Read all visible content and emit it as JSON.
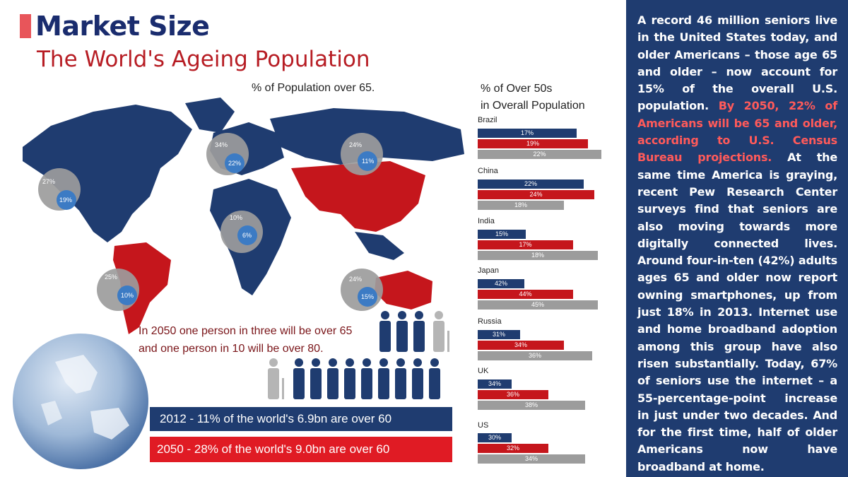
{
  "slide": {
    "title": "Market Size",
    "accent_color": "#e8555a",
    "title_color": "#1a2c6e"
  },
  "infographic": {
    "title": "The World's Ageing Population",
    "subtitle": "% of Population over 65.",
    "bar_heading": "% of Over 50s\nin Overall Population",
    "bubbles": [
      {
        "outer": "27%",
        "inner": "19%"
      },
      {
        "outer": "34%",
        "inner": "22%"
      },
      {
        "outer": "24%",
        "inner": "11%"
      },
      {
        "outer": "10%",
        "inner": "6%"
      },
      {
        "outer": "25%",
        "inner": "10%"
      },
      {
        "outer": "24%",
        "inner": "15%"
      }
    ],
    "countries": [
      {
        "name": "Brazil",
        "values": [
          "17%",
          "19%",
          "22%"
        ]
      },
      {
        "name": "China",
        "values": [
          "22%",
          "24%",
          "18%"
        ]
      },
      {
        "name": "India",
        "values": [
          "15%",
          "17%",
          "18%"
        ]
      },
      {
        "name": "Japan",
        "values": [
          "42%",
          "44%",
          "45%"
        ]
      },
      {
        "name": "Russia",
        "values": [
          "31%",
          "34%",
          "36%"
        ]
      },
      {
        "name": "UK",
        "values": [
          "34%",
          "36%",
          "38%"
        ]
      },
      {
        "name": "US",
        "values": [
          "30%",
          "32%",
          "34%"
        ]
      }
    ],
    "caption": "In 2050 one person in three will be over 65\nand one person in 10 will be over 80.",
    "stat_2012": "2012 - 11% of the world's 6.9bn are over 60",
    "stat_2050": "2050 - 28% of the world's 9.0bn are over 60"
  },
  "panel": {
    "text_1": "A record 46 million seniors live in the United States today, and older Americans – those age 65 and older – now account for 15% of the overall U.S. population.",
    "text_2": "By 2050, 22% of Americans will be 65 and older, according to U.S. Census Bureau projections.",
    "text_3": "At the same time America is graying, recent Pew Research Center surveys find that seniors are also moving towards more digitally connected lives. Around four-in-ten (42%) adults ages 65 and older now report owning smartphones, up from just 18% in 2013. Internet use and home broadband adoption among this group have also risen substantially. Today, 67% of seniors use the internet – a 55-percentage-point increase in just under two decades. And for the first time, half of older Americans now have broadband at home.",
    "background": "#1f3c70",
    "highlight_color": "#ff5a5a"
  }
}
